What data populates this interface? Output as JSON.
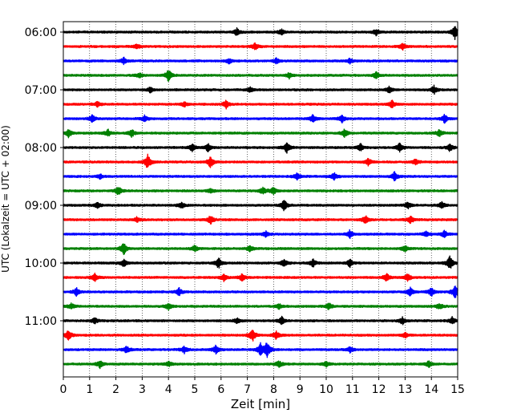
{
  "chart_data": {
    "type": "line",
    "title": "",
    "xlabel": "Zeit  [min]",
    "ylabel": "UTC (Lokalzeit = UTC + 02:00)",
    "xlim": [
      0,
      15
    ],
    "x_ticks": [
      0,
      1,
      2,
      3,
      4,
      5,
      6,
      7,
      8,
      9,
      10,
      11,
      12,
      13,
      14,
      15
    ],
    "y_tick_labels": [
      "06:00",
      "07:00",
      "08:00",
      "09:00",
      "10:00",
      "11:00"
    ],
    "grid": "vertical-dotted",
    "trace_colors": [
      "#000000",
      "#ff0000",
      "#0000ff",
      "#008000"
    ],
    "series": [
      {
        "start": "05:45",
        "color": "#000000",
        "events": [
          [
            6.6,
            0.45
          ],
          [
            8.3,
            0.35
          ],
          [
            11.9,
            0.4
          ],
          [
            14.9,
            0.9
          ]
        ]
      },
      {
        "start": "06:00",
        "color": "#ff0000",
        "events": [
          [
            2.8,
            0.35
          ],
          [
            7.3,
            0.45
          ],
          [
            12.9,
            0.4
          ]
        ]
      },
      {
        "start": "06:15",
        "color": "#0000ff",
        "events": [
          [
            2.3,
            0.4
          ],
          [
            6.3,
            0.35
          ],
          [
            8.1,
            0.35
          ],
          [
            10.9,
            0.3
          ]
        ]
      },
      {
        "start": "06:30",
        "color": "#008000",
        "events": [
          [
            4.0,
            0.8
          ],
          [
            8.6,
            0.35
          ],
          [
            11.9,
            0.45
          ],
          [
            2.9,
            0.3
          ]
        ]
      },
      {
        "start": "06:45",
        "color": "#000000",
        "events": [
          [
            3.3,
            0.35
          ],
          [
            7.1,
            0.3
          ],
          [
            12.4,
            0.4
          ],
          [
            14.1,
            0.5
          ]
        ]
      },
      {
        "start": "07:00",
        "color": "#ff0000",
        "events": [
          [
            6.2,
            0.5
          ],
          [
            12.5,
            0.5
          ],
          [
            4.6,
            0.3
          ],
          [
            1.3,
            0.3
          ]
        ]
      },
      {
        "start": "07:15",
        "color": "#0000ff",
        "events": [
          [
            1.1,
            0.45
          ],
          [
            3.1,
            0.4
          ],
          [
            9.5,
            0.5
          ],
          [
            10.6,
            0.45
          ],
          [
            14.5,
            0.5
          ]
        ]
      },
      {
        "start": "07:30",
        "color": "#008000",
        "events": [
          [
            0.2,
            0.5
          ],
          [
            1.7,
            0.45
          ],
          [
            2.6,
            0.5
          ],
          [
            10.7,
            0.5
          ],
          [
            14.3,
            0.45
          ]
        ]
      },
      {
        "start": "07:45",
        "color": "#000000",
        "events": [
          [
            4.9,
            0.55
          ],
          [
            5.5,
            0.5
          ],
          [
            8.5,
            0.7
          ],
          [
            11.3,
            0.45
          ],
          [
            12.8,
            0.6
          ],
          [
            14.7,
            0.45
          ]
        ]
      },
      {
        "start": "08:00",
        "color": "#ff0000",
        "events": [
          [
            3.2,
            1.0
          ],
          [
            5.6,
            0.75
          ],
          [
            11.6,
            0.5
          ],
          [
            13.4,
            0.35
          ]
        ]
      },
      {
        "start": "08:15",
        "color": "#0000ff",
        "events": [
          [
            1.4,
            0.3
          ],
          [
            8.9,
            0.45
          ],
          [
            10.3,
            0.45
          ],
          [
            12.6,
            0.6
          ]
        ]
      },
      {
        "start": "08:30",
        "color": "#008000",
        "events": [
          [
            2.1,
            0.6
          ],
          [
            7.6,
            0.45
          ],
          [
            8.0,
            0.45
          ],
          [
            5.6,
            0.3
          ]
        ]
      },
      {
        "start": "08:45",
        "color": "#000000",
        "events": [
          [
            1.3,
            0.45
          ],
          [
            4.5,
            0.4
          ],
          [
            8.4,
            0.8
          ],
          [
            13.1,
            0.4
          ],
          [
            14.4,
            0.4
          ]
        ]
      },
      {
        "start": "09:00",
        "color": "#ff0000",
        "events": [
          [
            5.6,
            0.55
          ],
          [
            11.5,
            0.6
          ],
          [
            13.2,
            0.5
          ],
          [
            2.8,
            0.3
          ]
        ]
      },
      {
        "start": "09:15",
        "color": "#0000ff",
        "events": [
          [
            7.7,
            0.35
          ],
          [
            10.9,
            0.55
          ],
          [
            13.8,
            0.35
          ],
          [
            14.5,
            0.45
          ]
        ]
      },
      {
        "start": "09:30",
        "color": "#008000",
        "events": [
          [
            2.3,
            0.8
          ],
          [
            5.0,
            0.45
          ],
          [
            7.1,
            0.35
          ],
          [
            13.0,
            0.4
          ]
        ]
      },
      {
        "start": "09:45",
        "color": "#000000",
        "events": [
          [
            2.3,
            0.5
          ],
          [
            5.9,
            0.7
          ],
          [
            8.4,
            0.55
          ],
          [
            9.5,
            0.5
          ],
          [
            10.9,
            0.5
          ],
          [
            14.7,
            0.9
          ]
        ]
      },
      {
        "start": "10:00",
        "color": "#ff0000",
        "events": [
          [
            1.2,
            0.45
          ],
          [
            6.1,
            0.45
          ],
          [
            6.8,
            0.45
          ],
          [
            12.3,
            0.55
          ],
          [
            13.1,
            0.45
          ]
        ]
      },
      {
        "start": "10:15",
        "color": "#0000ff",
        "events": [
          [
            0.5,
            0.5
          ],
          [
            4.4,
            0.45
          ],
          [
            13.2,
            0.5
          ],
          [
            14.0,
            0.55
          ],
          [
            14.9,
            0.9
          ]
        ]
      },
      {
        "start": "10:30",
        "color": "#008000",
        "events": [
          [
            0.3,
            0.4
          ],
          [
            4.0,
            0.4
          ],
          [
            8.2,
            0.35
          ],
          [
            10.1,
            0.45
          ],
          [
            14.3,
            0.4
          ]
        ]
      },
      {
        "start": "10:45",
        "color": "#000000",
        "events": [
          [
            1.2,
            0.4
          ],
          [
            6.6,
            0.35
          ],
          [
            8.3,
            0.55
          ],
          [
            12.9,
            0.45
          ],
          [
            14.8,
            0.45
          ]
        ]
      },
      {
        "start": "11:00",
        "color": "#ff0000",
        "events": [
          [
            0.2,
            0.7
          ],
          [
            7.2,
            0.9
          ],
          [
            8.1,
            0.5
          ],
          [
            13.0,
            0.35
          ]
        ]
      },
      {
        "start": "11:15",
        "color": "#0000ff",
        "events": [
          [
            2.4,
            0.45
          ],
          [
            4.6,
            0.45
          ],
          [
            5.8,
            0.5
          ],
          [
            7.5,
            0.7
          ],
          [
            7.75,
            1.1
          ],
          [
            10.9,
            0.4
          ]
        ]
      },
      {
        "start": "11:30",
        "color": "#008000",
        "events": [
          [
            1.4,
            0.5
          ],
          [
            4.0,
            0.35
          ],
          [
            8.2,
            0.4
          ],
          [
            10.0,
            0.35
          ],
          [
            13.9,
            0.4
          ]
        ]
      }
    ]
  }
}
